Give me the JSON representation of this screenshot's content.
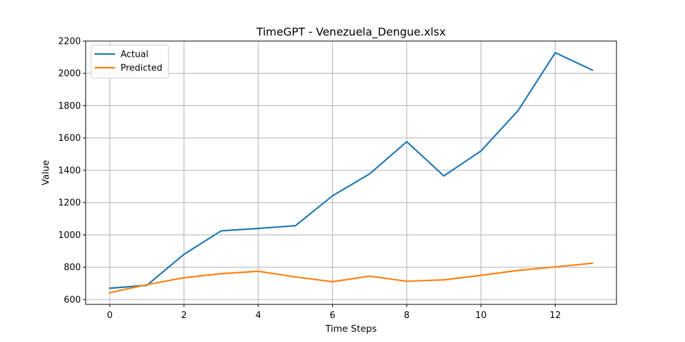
{
  "chart_data": {
    "type": "line",
    "title": "TimeGPT - Venezuela_Dengue.xlsx",
    "xlabel": "Time Steps",
    "ylabel": "Value",
    "x": [
      0,
      1,
      2,
      3,
      4,
      5,
      6,
      7,
      8,
      9,
      10,
      11,
      12,
      13
    ],
    "xlim": [
      -0.65,
      13.65
    ],
    "ylim": [
      570,
      2200
    ],
    "xticks": [
      0,
      2,
      4,
      6,
      8,
      10,
      12
    ],
    "yticks": [
      600,
      800,
      1000,
      1200,
      1400,
      1600,
      1800,
      2000,
      2200
    ],
    "grid": true,
    "legend_position": "upper-left",
    "series": [
      {
        "name": "Actual",
        "color": "#1f77b4",
        "values": [
          670,
          688,
          880,
          1025,
          1040,
          1057,
          1242,
          1378,
          1577,
          1365,
          1520,
          1770,
          2128,
          2020
        ]
      },
      {
        "name": "Predicted",
        "color": "#ff7f0e",
        "values": [
          642,
          692,
          735,
          760,
          775,
          740,
          710,
          745,
          713,
          722,
          750,
          780,
          802,
          825
        ]
      }
    ]
  }
}
